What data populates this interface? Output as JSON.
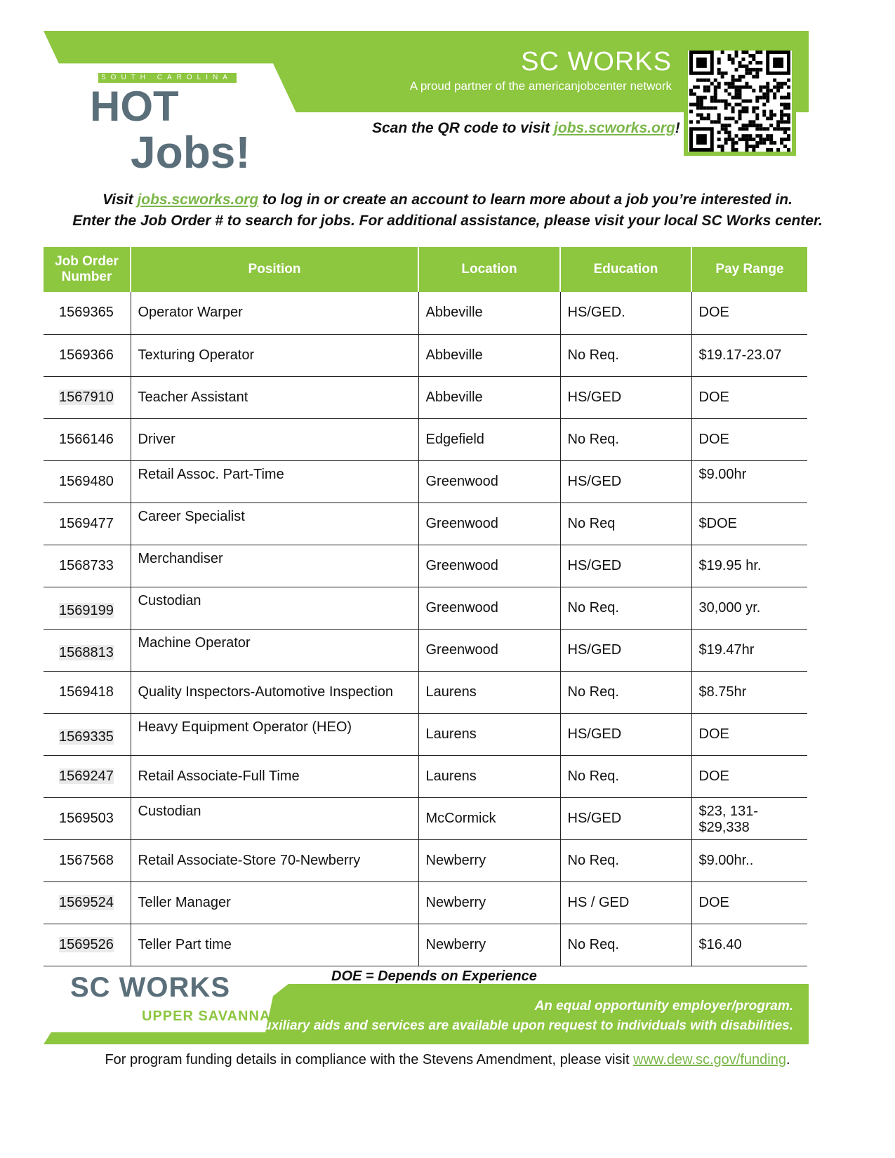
{
  "header": {
    "logo_top": "SOUTH CAROLINA",
    "logo_hot": "HOT",
    "logo_jobs": "Jobs!",
    "brand": "SC WORKS",
    "partner": "A proud partner of the americanjobcenter network",
    "scan_prefix": "Scan the QR code to visit ",
    "scan_link": "jobs.scworks.org",
    "scan_suffix": "!"
  },
  "intro": {
    "line1_prefix": "Visit ",
    "link": "jobs.scworks.org",
    "line1_suffix": " to log in or create an account to learn more about a job you’re interested in.",
    "line2": "Enter the Job Order # to search for jobs. For additional assistance, please visit your local SC Works center."
  },
  "table": {
    "headers": [
      "Job Order Number",
      "Position",
      "Location",
      "Education",
      "Pay Range"
    ],
    "rows": [
      [
        "1569365",
        "Operator Warper",
        "Abbeville",
        "HS/GED.",
        "DOE"
      ],
      [
        "1569366",
        "Texturing Operator",
        "Abbeville",
        "No Req.",
        "$19.17-23.07"
      ],
      [
        "1567910",
        "Teacher Assistant",
        "Abbeville",
        "HS/GED",
        "DOE"
      ],
      [
        "1566146",
        "Driver",
        "Edgefield",
        "No Req.",
        "DOE"
      ],
      [
        "1569480",
        "Retail Assoc. Part-Time",
        "Greenwood",
        "HS/GED",
        "$9.00hr"
      ],
      [
        "1569477",
        "Career Specialist",
        "Greenwood",
        "No Req",
        "$DOE"
      ],
      [
        "1568733",
        "Merchandiser",
        "Greenwood",
        "HS/GED",
        "$19.95 hr."
      ],
      [
        "1569199",
        "Custodian",
        "Greenwood",
        "No Req.",
        "30,000 yr."
      ],
      [
        "1568813",
        "Machine Operator",
        "Greenwood",
        "HS/GED",
        "$19.47hr"
      ],
      [
        "1569418",
        "Quality Inspectors-Automotive Inspection",
        "Laurens",
        "No Req.",
        "$8.75hr"
      ],
      [
        "1569335",
        "Heavy Equipment Operator (HEO)",
        "Laurens",
        "HS/GED",
        "DOE"
      ],
      [
        "1569247",
        "Retail Associate-Full Time",
        "Laurens",
        "No Req.",
        "DOE"
      ],
      [
        "1569503",
        "Custodian",
        "McCormick",
        "HS/GED",
        "$23, 131- $29,338"
      ],
      [
        "1567568",
        "Retail Associate-Store 70-Newberry",
        "Newberry",
        "No Req.",
        "$9.00hr.."
      ],
      [
        "1569524",
        "Teller Manager",
        "Newberry",
        "HS / GED",
        "DOE"
      ],
      [
        "1569526",
        "Teller Part time",
        "Newberry",
        "No Req.",
        "$16.40"
      ]
    ]
  },
  "footer": {
    "doe_note": "DOE = Depends on Experience",
    "brand": "SC WORKS",
    "region": "UPPER SAVANNAH",
    "eeo1": "An equal opportunity employer/program.",
    "eeo2": "Auxiliary aids and services are available upon request to individuals with disabilities.",
    "funding_prefix": "For program funding details in compliance with the Stevens Amendment, please visit ",
    "funding_link": "www.dew.sc.gov/funding",
    "funding_suffix": "."
  },
  "colors": {
    "accent": "#8dc63f",
    "slate": "#5a6f7a"
  }
}
